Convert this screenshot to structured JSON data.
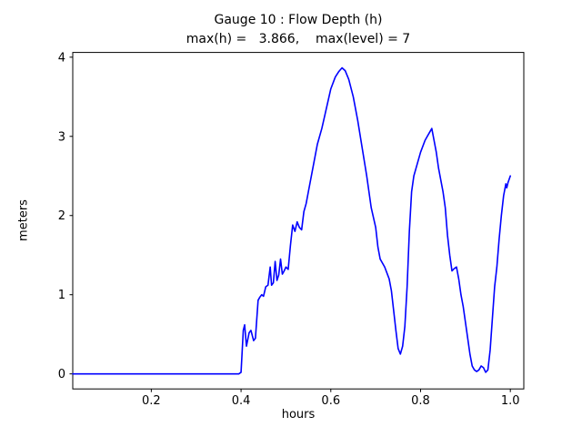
{
  "window": {
    "background": "#ffffff"
  },
  "chart_data": {
    "type": "line",
    "title": "Gauge 10 : Flow Depth (h)",
    "subtitle": "max(h) =   3.866,    max(level) = 7",
    "xlabel": "hours",
    "ylabel": "meters",
    "xlim": [
      0.025,
      1.03
    ],
    "ylim": [
      -0.19,
      4.06
    ],
    "xticks": [
      0.2,
      0.4,
      0.6,
      0.8,
      1.0
    ],
    "xtick_labels": [
      "0.2",
      "0.4",
      "0.6",
      "0.8",
      "1.0"
    ],
    "yticks": [
      0,
      1,
      2,
      3,
      4
    ],
    "ytick_labels": [
      "0",
      "1",
      "2",
      "3",
      "4"
    ],
    "grid": false,
    "legend": "none",
    "line_color": "#0000ff",
    "axis_color": "#000000",
    "max_h": 3.866,
    "max_level": 7,
    "series": [
      {
        "name": "flow-depth-h",
        "x": [
          0.025,
          0.05,
          0.1,
          0.15,
          0.2,
          0.25,
          0.3,
          0.35,
          0.395,
          0.4,
          0.405,
          0.408,
          0.412,
          0.418,
          0.422,
          0.428,
          0.432,
          0.438,
          0.442,
          0.446,
          0.45,
          0.455,
          0.46,
          0.465,
          0.468,
          0.472,
          0.476,
          0.48,
          0.484,
          0.488,
          0.492,
          0.496,
          0.5,
          0.505,
          0.51,
          0.515,
          0.52,
          0.525,
          0.53,
          0.535,
          0.54,
          0.545,
          0.55,
          0.56,
          0.57,
          0.58,
          0.59,
          0.6,
          0.61,
          0.618,
          0.625,
          0.632,
          0.64,
          0.65,
          0.66,
          0.67,
          0.68,
          0.69,
          0.7,
          0.705,
          0.71,
          0.72,
          0.73,
          0.735,
          0.74,
          0.745,
          0.75,
          0.755,
          0.76,
          0.765,
          0.77,
          0.775,
          0.78,
          0.785,
          0.79,
          0.8,
          0.81,
          0.815,
          0.82,
          0.825,
          0.83,
          0.835,
          0.84,
          0.85,
          0.855,
          0.86,
          0.865,
          0.87,
          0.875,
          0.88,
          0.885,
          0.89,
          0.895,
          0.9,
          0.905,
          0.91,
          0.915,
          0.92,
          0.925,
          0.93,
          0.935,
          0.94,
          0.945,
          0.95,
          0.955,
          0.96,
          0.965,
          0.97,
          0.975,
          0.98,
          0.985,
          0.99,
          0.992,
          0.995,
          1.0
        ],
        "y": [
          0,
          0,
          0,
          0,
          0,
          0,
          0,
          0,
          0,
          0.02,
          0.55,
          0.62,
          0.35,
          0.52,
          0.55,
          0.42,
          0.45,
          0.93,
          0.97,
          1.0,
          0.98,
          1.1,
          1.12,
          1.35,
          1.12,
          1.15,
          1.42,
          1.18,
          1.25,
          1.45,
          1.26,
          1.3,
          1.35,
          1.32,
          1.62,
          1.88,
          1.8,
          1.92,
          1.85,
          1.82,
          2.05,
          2.15,
          2.3,
          2.6,
          2.9,
          3.1,
          3.35,
          3.6,
          3.75,
          3.82,
          3.866,
          3.83,
          3.72,
          3.5,
          3.2,
          2.85,
          2.5,
          2.1,
          1.85,
          1.6,
          1.45,
          1.35,
          1.2,
          1.05,
          0.8,
          0.55,
          0.32,
          0.25,
          0.35,
          0.6,
          1.1,
          1.8,
          2.3,
          2.5,
          2.6,
          2.8,
          2.95,
          3.0,
          3.05,
          3.1,
          2.95,
          2.8,
          2.6,
          2.3,
          2.1,
          1.75,
          1.5,
          1.3,
          1.33,
          1.35,
          1.2,
          1.0,
          0.85,
          0.65,
          0.45,
          0.25,
          0.1,
          0.05,
          0.03,
          0.05,
          0.1,
          0.08,
          0.02,
          0.05,
          0.3,
          0.7,
          1.1,
          1.35,
          1.7,
          2.0,
          2.25,
          2.4,
          2.35,
          2.42,
          2.5
        ]
      }
    ]
  }
}
